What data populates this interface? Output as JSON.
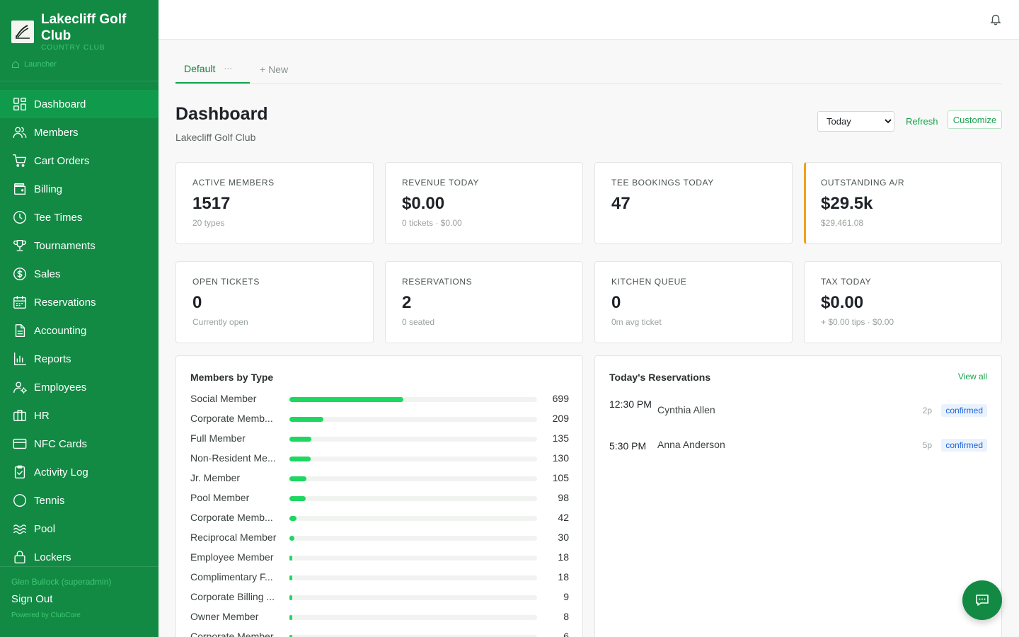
{
  "brand": {
    "name": "Lakecliff Golf Club",
    "subtitle": "COUNTRY CLUB",
    "launcher": "Launcher"
  },
  "nav": [
    {
      "label": "Dashboard",
      "icon": "dashboard-icon",
      "active": true
    },
    {
      "label": "Members",
      "icon": "users-icon"
    },
    {
      "label": "Cart Orders",
      "icon": "cart-icon"
    },
    {
      "label": "Billing",
      "icon": "wallet-icon"
    },
    {
      "label": "Tee Times",
      "icon": "clock-icon"
    },
    {
      "label": "Tournaments",
      "icon": "trophy-icon"
    },
    {
      "label": "Sales",
      "icon": "dollar-icon"
    },
    {
      "label": "Reservations",
      "icon": "calendar-icon"
    },
    {
      "label": "Accounting",
      "icon": "document-icon"
    },
    {
      "label": "Reports",
      "icon": "bar-chart-icon"
    },
    {
      "label": "Employees",
      "icon": "user-gear-icon"
    },
    {
      "label": "HR",
      "icon": "briefcase-icon"
    },
    {
      "label": "NFC Cards",
      "icon": "card-icon"
    },
    {
      "label": "Activity Log",
      "icon": "clipboard-icon"
    },
    {
      "label": "Tennis",
      "icon": "circle-icon"
    },
    {
      "label": "Pool",
      "icon": "waves-icon"
    },
    {
      "label": "Lockers",
      "icon": "lock-icon"
    }
  ],
  "sidebar_footer": {
    "user": "Glen Bullock (superadmin)",
    "sign_out": "Sign Out",
    "powered": "Powered by ClubCore"
  },
  "tabs": {
    "default": "Default",
    "more": "···",
    "new": "+ New"
  },
  "header": {
    "title": "Dashboard",
    "subtitle": "Lakecliff Golf Club",
    "range_selected": "Today",
    "refresh": "Refresh",
    "customize": "Customize"
  },
  "kpis": [
    {
      "label": "ACTIVE MEMBERS",
      "value": "1517",
      "sub": "20 types"
    },
    {
      "label": "REVENUE TODAY",
      "value": "$0.00",
      "sub": "0 tickets · $0.00"
    },
    {
      "label": "TEE BOOKINGS TODAY",
      "value": "47",
      "sub": ""
    },
    {
      "label": "OUTSTANDING A/R",
      "value": "$29.5k",
      "sub": "$29,461.08",
      "accent": "#f0a020"
    },
    {
      "label": "OPEN TICKETS",
      "value": "0",
      "sub": "Currently open"
    },
    {
      "label": "RESERVATIONS",
      "value": "2",
      "sub": "0 seated"
    },
    {
      "label": "KITCHEN QUEUE",
      "value": "0",
      "sub": "0m avg ticket"
    },
    {
      "label": "TAX TODAY",
      "value": "$0.00",
      "sub": "+ $0.00 tips · $0.00"
    }
  ],
  "members_by_type": {
    "title": "Members by Type",
    "max": 1517,
    "rows": [
      {
        "label": "Social Member",
        "value": 699
      },
      {
        "label": "Corporate Memb...",
        "value": 209
      },
      {
        "label": "Full Member",
        "value": 135
      },
      {
        "label": "Non-Resident Me...",
        "value": 130
      },
      {
        "label": "Jr. Member",
        "value": 105
      },
      {
        "label": "Pool Member",
        "value": 98
      },
      {
        "label": "Corporate Memb...",
        "value": 42
      },
      {
        "label": "Reciprocal Member",
        "value": 30
      },
      {
        "label": "Employee Member",
        "value": 18
      },
      {
        "label": "Complimentary F...",
        "value": 18
      },
      {
        "label": "Corporate Billing ...",
        "value": 9
      },
      {
        "label": "Owner Member",
        "value": 8
      },
      {
        "label": "Corporate Member",
        "value": 6
      }
    ]
  },
  "reservations": {
    "title": "Today's Reservations",
    "view_all": "View all",
    "rows": [
      {
        "time": "12:30 PM",
        "name": "Cynthia Allen",
        "party": "2p",
        "status": "confirmed"
      },
      {
        "time": "5:30 PM",
        "name": "Anna Anderson",
        "party": "5p",
        "status": "confirmed"
      }
    ]
  }
}
